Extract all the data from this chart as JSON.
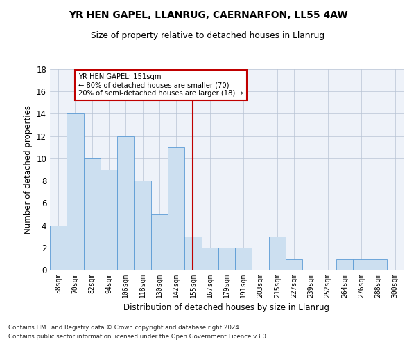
{
  "title1": "YR HEN GAPEL, LLANRUG, CAERNARFON, LL55 4AW",
  "title2": "Size of property relative to detached houses in Llanrug",
  "xlabel": "Distribution of detached houses by size in Llanrug",
  "ylabel": "Number of detached properties",
  "categories": [
    "58sqm",
    "70sqm",
    "82sqm",
    "94sqm",
    "106sqm",
    "118sqm",
    "130sqm",
    "142sqm",
    "155sqm",
    "167sqm",
    "179sqm",
    "191sqm",
    "203sqm",
    "215sqm",
    "227sqm",
    "239sqm",
    "252sqm",
    "264sqm",
    "276sqm",
    "288sqm",
    "300sqm"
  ],
  "values": [
    4,
    14,
    10,
    9,
    12,
    8,
    5,
    11,
    3,
    2,
    2,
    2,
    0,
    3,
    1,
    0,
    0,
    1,
    1,
    1,
    0
  ],
  "bar_color": "#ccdff0",
  "bar_edge_color": "#5b9bd5",
  "vline_x": 8,
  "vline_color": "#c00000",
  "annotation_text": "YR HEN GAPEL: 151sqm\n← 80% of detached houses are smaller (70)\n20% of semi-detached houses are larger (18) →",
  "annotation_box_color": "#ffffff",
  "annotation_box_edge": "#c00000",
  "ylim": [
    0,
    18
  ],
  "yticks": [
    0,
    2,
    4,
    6,
    8,
    10,
    12,
    14,
    16,
    18
  ],
  "footer1": "Contains HM Land Registry data © Crown copyright and database right 2024.",
  "footer2": "Contains public sector information licensed under the Open Government Licence v3.0.",
  "bg_color": "#eef2f9"
}
